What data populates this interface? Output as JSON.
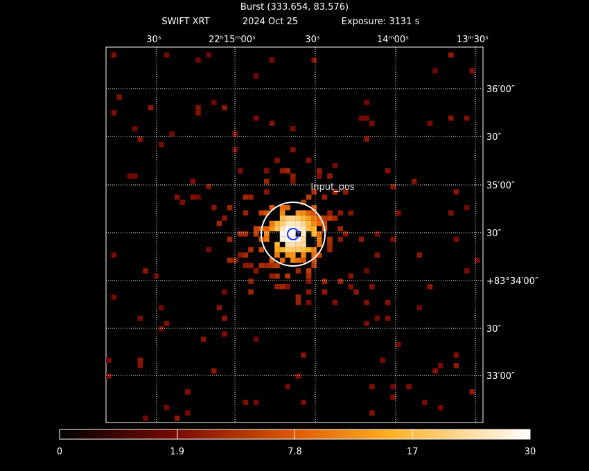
{
  "header": {
    "title": "Burst (333.654, 83.576)",
    "instrument": "SWIFT XRT",
    "date": "2024 Oct 25",
    "exposure": "Exposure: 3131 s"
  },
  "ra_labels": [
    "30ˢ",
    "22ʰ15ᵐ00ˢ",
    "30ˢ",
    "14ᵐ00ˢ",
    "13ᵐ30ˢ"
  ],
  "dec_labels": [
    "36′00″",
    "30″",
    "35′00″",
    "30″",
    "+83°34′00″",
    "30″",
    "33′00″"
  ],
  "annotation": "Input_pos",
  "colorbar": {
    "ticks": [
      0,
      1.9,
      7.8,
      17,
      30
    ]
  }
}
